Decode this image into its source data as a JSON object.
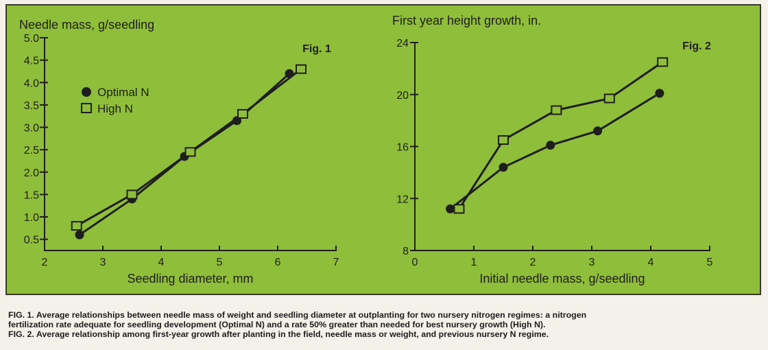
{
  "chart_data": [
    {
      "type": "line",
      "title": "Needle mass, g/seedling",
      "fig_label": "Fig. 1",
      "xlabel": "Seedling diameter, mm",
      "ylabel": "Needle mass, g/seedling",
      "xlim": [
        2,
        7
      ],
      "ylim": [
        0.25,
        5.0
      ],
      "xticks": [
        2,
        3,
        4,
        5,
        6,
        7
      ],
      "yticks": [
        0.5,
        1.0,
        1.5,
        2.0,
        2.5,
        3.0,
        3.5,
        4.0,
        4.5,
        5.0
      ],
      "ytick_labels": [
        "0.5",
        "1.0",
        "1.5",
        "2.0",
        "2.5",
        "3.0",
        "3.5",
        "4.0",
        "4.5",
        "5.0"
      ],
      "legend": {
        "placement": "upper-left"
      },
      "series": [
        {
          "name": "Optimal N",
          "marker": "circle",
          "x": [
            2.6,
            3.5,
            4.4,
            5.3,
            6.2
          ],
          "y": [
            0.6,
            1.4,
            2.35,
            3.15,
            4.2
          ]
        },
        {
          "name": "High N",
          "marker": "square",
          "x": [
            2.55,
            3.5,
            4.5,
            5.4,
            6.4
          ],
          "y": [
            0.8,
            1.5,
            2.45,
            3.3,
            4.3
          ]
        }
      ]
    },
    {
      "type": "line",
      "title": "First year height growth, in.",
      "fig_label": "Fig. 2",
      "xlabel": "Initial needle mass, g/seedling",
      "ylabel": "First year height growth, in.",
      "xlim": [
        0,
        5
      ],
      "ylim": [
        8,
        24
      ],
      "xticks": [
        0,
        1,
        2,
        3,
        4,
        5
      ],
      "yticks": [
        8,
        12,
        16,
        20,
        24
      ],
      "series": [
        {
          "name": "Optimal N",
          "marker": "circle",
          "x": [
            0.6,
            1.5,
            2.3,
            3.1,
            4.15
          ],
          "y": [
            11.2,
            14.4,
            16.1,
            17.2,
            20.1
          ]
        },
        {
          "name": "High N",
          "marker": "square",
          "x": [
            0.75,
            1.5,
            2.4,
            3.3,
            4.2
          ],
          "y": [
            11.2,
            16.5,
            18.8,
            19.7,
            22.5
          ]
        }
      ]
    }
  ],
  "caption": {
    "line1": "FIG. 1. Average relationships between needle mass of weight and seedling diameter at outplanting for two nursery nitrogen regimes: a nitrogen",
    "line2": "fertilization rate adequate for seedling development (Optimal N) and a rate 50% greater than needed for best nursery growth (High N).",
    "line3": "FIG. 2. Average relationship among first-year growth after planting in the field, needle mass or weight, and previous nursery N regime."
  },
  "colors": {
    "panel": "#8fbe3a",
    "ink": "#1e1e1e",
    "page": "#f4f1ea"
  }
}
